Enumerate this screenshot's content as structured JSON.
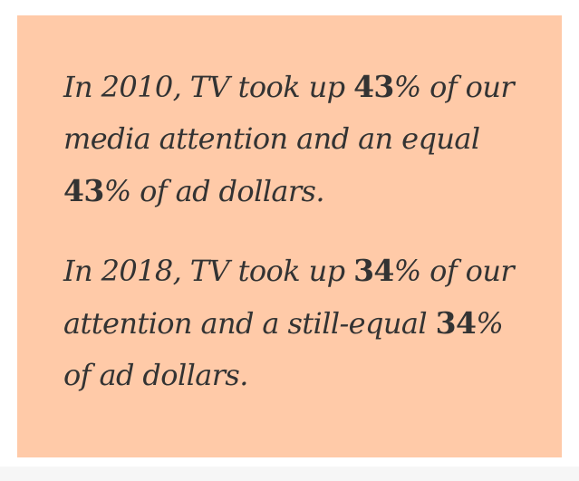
{
  "card": {
    "background": "#ffcaa8",
    "text_color": "#333333"
  },
  "paragraph_1": {
    "line_1_a": "In 2010, TV took up ",
    "line_1_num": "43",
    "line_1_b": "% of our",
    "line_2": "media attention and an equal",
    "line_3_num": "43",
    "line_3_b": "% of ad dollars."
  },
  "paragraph_2": {
    "line_1_a": "In 2018, TV took up ",
    "line_1_num": "34",
    "line_1_b": "% of our",
    "line_2_a": "attention and a still-equal ",
    "line_2_num": "34",
    "line_2_b": "%",
    "line_3": "of ad dollars."
  }
}
